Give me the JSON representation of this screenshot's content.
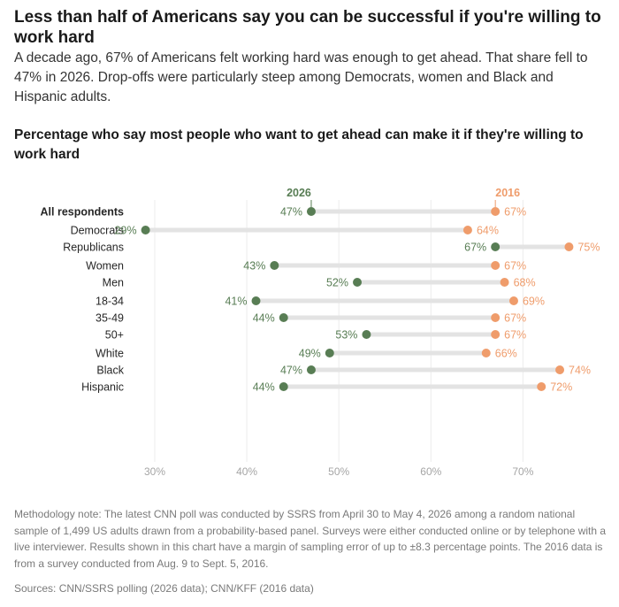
{
  "header": {
    "title": "Less than half of Americans say you can be successful if you're willing to work hard",
    "dek": "A decade ago, 67% of Americans felt working hard was enough to get ahead. That share fell to 47% in 2026. Drop-offs were particularly steep among Democrats, women and Black and Hispanic adults.",
    "subtitle": "Percentage who say most people who want to get ahead can make it if they're willing to work hard"
  },
  "chart_data": {
    "type": "dumbbell",
    "series": [
      {
        "name": "2026",
        "color": "#587d54"
      },
      {
        "name": "2016",
        "color": "#ef9c6b"
      }
    ],
    "categories": [
      "All respondents",
      "Democrats",
      "Republicans",
      "Women",
      "Men",
      "18-34",
      "35-49",
      "50+",
      "White",
      "Black",
      "Hispanic"
    ],
    "groups": [
      [
        0
      ],
      [
        1,
        2
      ],
      [
        3,
        4
      ],
      [
        5,
        6,
        7
      ],
      [
        8,
        9,
        10
      ]
    ],
    "highlight_category": "All respondents",
    "values_2026": [
      47,
      29,
      67,
      43,
      52,
      41,
      44,
      53,
      49,
      47,
      44
    ],
    "values_2016": [
      67,
      64,
      75,
      67,
      68,
      69,
      67,
      67,
      66,
      74,
      72
    ],
    "x_ticks": [
      30,
      40,
      50,
      60,
      70
    ],
    "x_tick_labels": [
      "30%",
      "40%",
      "50%",
      "60%",
      "70%"
    ],
    "value_suffix": "%",
    "xlim": [
      26,
      78
    ],
    "grid": true,
    "connector_color": "#e3e3e3"
  },
  "footer": {
    "note": "Methodology note: The latest CNN poll was conducted by SSRS from April 30 to May 4, 2026 among a random national sample of 1,499 US adults drawn from a probability-based panel. Surveys were either conducted online or by telephone with a live interviewer. Results shown in this chart have a margin of sampling error of up to ±8.3 percentage points. The 2016 data is from a survey conducted from Aug. 9 to Sept. 5, 2016.",
    "sources": "Sources: CNN/SSRS polling (2026 data); CNN/KFF (2016 data)"
  }
}
